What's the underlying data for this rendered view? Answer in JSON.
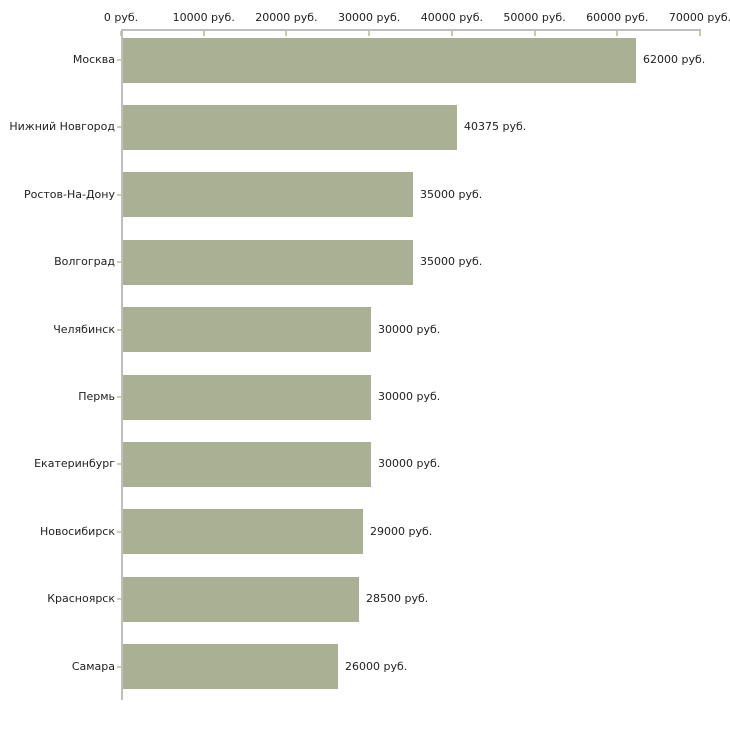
{
  "chart_data": {
    "type": "bar",
    "orientation": "horizontal",
    "categories": [
      "Москва",
      "Нижний Новгород",
      "Ростов-На-Дону",
      "Волгоград",
      "Челябинск",
      "Пермь",
      "Екатеринбург",
      "Новосибирск",
      "Красноярск",
      "Самара"
    ],
    "values": [
      62000,
      40375,
      35000,
      35000,
      30000,
      30000,
      30000,
      29000,
      28500,
      26000
    ],
    "value_labels": [
      "62000 руб.",
      "40375 руб.",
      "35000 руб.",
      "35000 руб.",
      "30000 руб.",
      "30000 руб.",
      "30000 руб.",
      "29000 руб.",
      "28500 руб.",
      "26000 руб."
    ],
    "x_axis": {
      "position": "top",
      "min": 0,
      "max": 70000,
      "tick_step": 10000,
      "tick_labels": [
        "0 руб.",
        "10000 руб.",
        "20000 руб.",
        "30000 руб.",
        "40000 руб.",
        "50000 руб.",
        "60000 руб.",
        "70000 руб."
      ]
    },
    "ylabel": "",
    "xlabel": "",
    "title": "",
    "grid": false,
    "colors": {
      "bar": "#aab093",
      "axis_line": "#bfbfbf",
      "axis_tick": "#c9cc9c",
      "category_tick": "#cdd0ab",
      "text": "#222222",
      "background": "#ffffff"
    }
  }
}
